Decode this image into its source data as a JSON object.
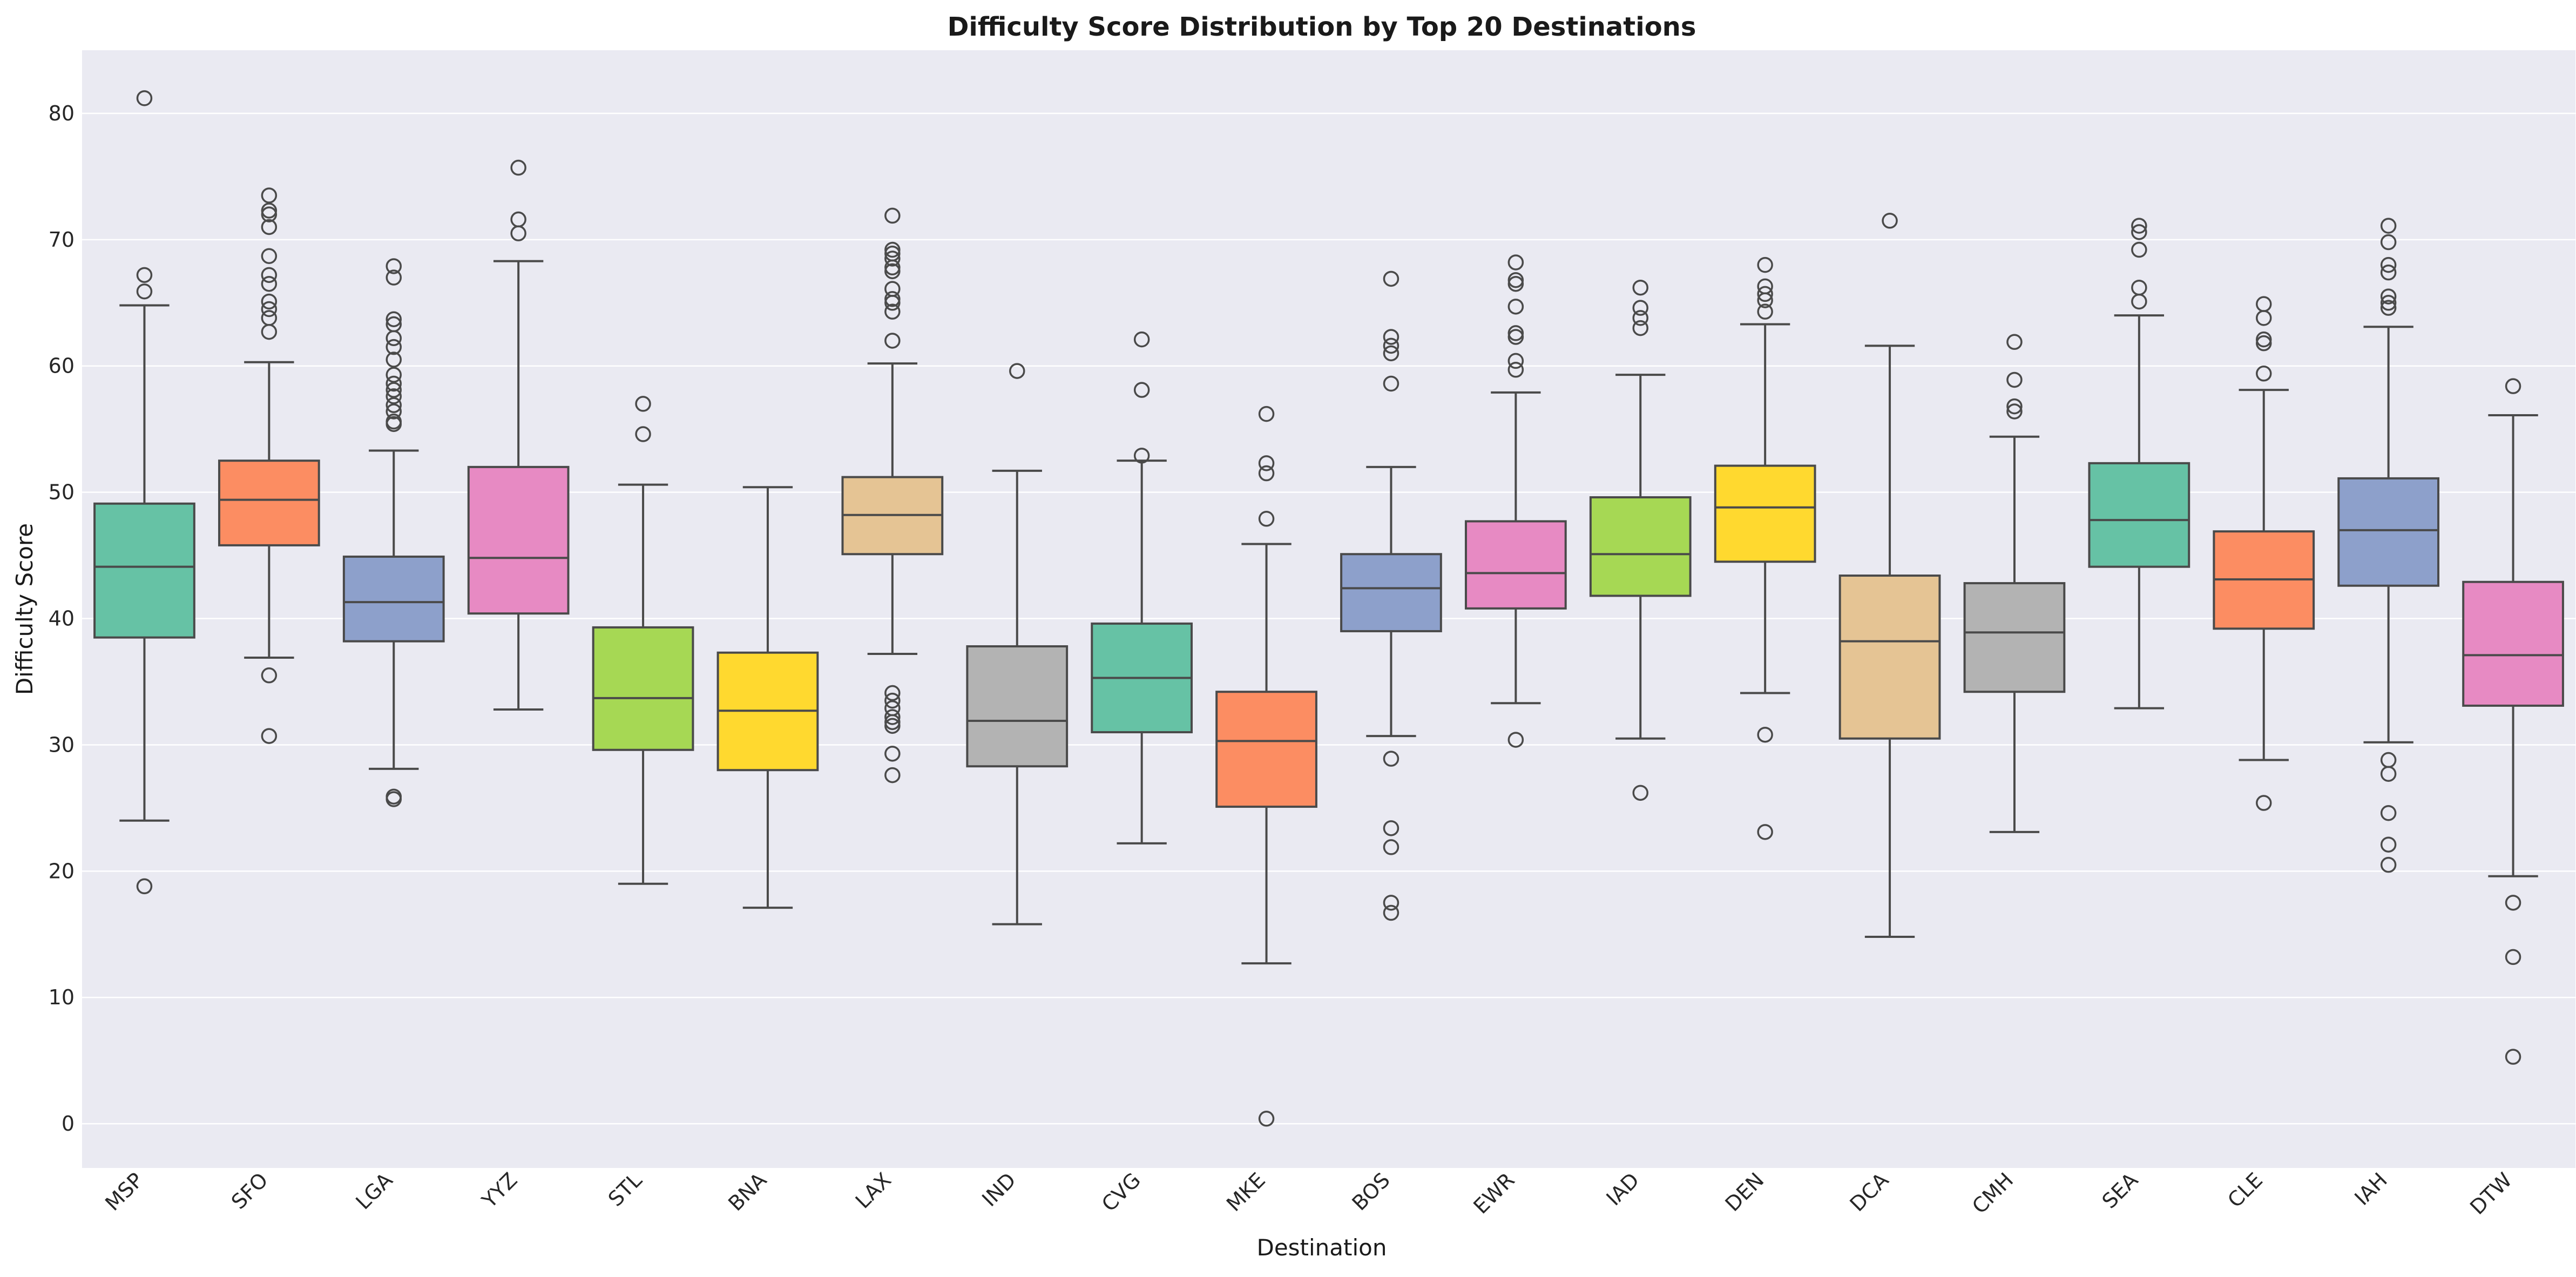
{
  "chart_data": {
    "type": "box",
    "title": "Difficulty Score Distribution by Top 20 Destinations",
    "xlabel": "Destination",
    "ylabel": "Difficulty Score",
    "ylim": [
      -3.5,
      85
    ],
    "yticks": [
      0,
      10,
      20,
      30,
      40,
      50,
      60,
      70,
      80
    ],
    "grid": true,
    "legend": "none",
    "categories": [
      "MSP",
      "SFO",
      "LGA",
      "YYZ",
      "STL",
      "BNA",
      "LAX",
      "IND",
      "CVG",
      "MKE",
      "BOS",
      "EWR",
      "IAD",
      "DEN",
      "DCA",
      "CMH",
      "SEA",
      "CLE",
      "IAH",
      "DTW"
    ],
    "boxes": [
      {
        "cat": "MSP",
        "color": "#66c2a5",
        "q1": 38.5,
        "median": 44.1,
        "q3": 49.1,
        "whisker_low": 24.0,
        "whisker_high": 64.8,
        "fliers": [
          81.2,
          67.2,
          65.9,
          18.8
        ]
      },
      {
        "cat": "SFO",
        "color": "#fc8d62",
        "q1": 45.8,
        "median": 49.4,
        "q3": 52.5,
        "whisker_low": 36.9,
        "whisker_high": 60.3,
        "fliers": [
          73.5,
          72.3,
          72.0,
          71.0,
          68.7,
          67.2,
          66.5,
          65.1,
          64.5,
          63.8,
          62.7,
          35.5,
          30.7
        ]
      },
      {
        "cat": "LGA",
        "color": "#8da0cb",
        "q1": 38.2,
        "median": 41.3,
        "q3": 44.9,
        "whisker_low": 28.1,
        "whisker_high": 53.3,
        "fliers": [
          67.9,
          67.0,
          63.7,
          63.3,
          62.2,
          61.5,
          60.5,
          59.3,
          58.6,
          58.1,
          57.6,
          56.9,
          56.4,
          55.6,
          55.4,
          25.9,
          25.7
        ]
      },
      {
        "cat": "YYZ",
        "color": "#e78ac3",
        "q1": 40.4,
        "median": 44.8,
        "q3": 52.0,
        "whisker_low": 32.8,
        "whisker_high": 68.3,
        "fliers": [
          75.7,
          71.6,
          70.5
        ]
      },
      {
        "cat": "STL",
        "color": "#a6d854",
        "q1": 29.6,
        "median": 33.7,
        "q3": 39.3,
        "whisker_low": 19.0,
        "whisker_high": 50.6,
        "fliers": [
          57.0,
          54.6
        ]
      },
      {
        "cat": "BNA",
        "color": "#ffd92f",
        "q1": 28.0,
        "median": 32.7,
        "q3": 37.3,
        "whisker_low": 17.1,
        "whisker_high": 50.4,
        "fliers": []
      },
      {
        "cat": "LAX",
        "color": "#e5c494",
        "q1": 45.1,
        "median": 48.2,
        "q3": 51.2,
        "whisker_low": 37.2,
        "whisker_high": 60.2,
        "fliers": [
          71.9,
          69.2,
          68.9,
          68.5,
          67.8,
          67.5,
          66.1,
          65.3,
          65.0,
          64.3,
          62.0,
          34.1,
          33.5,
          32.9,
          32.2,
          31.8,
          31.5,
          29.3,
          27.6
        ]
      },
      {
        "cat": "IND",
        "color": "#b3b3b3",
        "q1": 28.3,
        "median": 31.9,
        "q3": 37.8,
        "whisker_low": 15.8,
        "whisker_high": 51.7,
        "fliers": [
          59.6
        ]
      },
      {
        "cat": "CVG",
        "color": "#66c2a5",
        "q1": 31.0,
        "median": 35.3,
        "q3": 39.6,
        "whisker_low": 22.2,
        "whisker_high": 52.5,
        "fliers": [
          62.1,
          58.1,
          52.9
        ]
      },
      {
        "cat": "MKE",
        "color": "#fc8d62",
        "q1": 25.1,
        "median": 30.3,
        "q3": 34.2,
        "whisker_low": 12.7,
        "whisker_high": 45.9,
        "fliers": [
          56.2,
          52.3,
          51.5,
          47.9,
          0.4
        ]
      },
      {
        "cat": "BOS",
        "color": "#8da0cb",
        "q1": 39.0,
        "median": 42.4,
        "q3": 45.1,
        "whisker_low": 30.7,
        "whisker_high": 52.0,
        "fliers": [
          66.9,
          62.3,
          61.6,
          61.0,
          58.6,
          28.9,
          23.4,
          21.9,
          17.5,
          16.7
        ]
      },
      {
        "cat": "EWR",
        "color": "#e78ac3",
        "q1": 40.8,
        "median": 43.6,
        "q3": 47.7,
        "whisker_low": 33.3,
        "whisker_high": 57.9,
        "fliers": [
          68.2,
          66.8,
          66.5,
          64.7,
          62.6,
          62.3,
          60.4,
          59.7,
          30.4
        ]
      },
      {
        "cat": "IAD",
        "color": "#a6d854",
        "q1": 41.8,
        "median": 45.1,
        "q3": 49.6,
        "whisker_low": 30.5,
        "whisker_high": 59.3,
        "fliers": [
          66.2,
          64.6,
          63.8,
          63.0,
          26.2
        ]
      },
      {
        "cat": "DEN",
        "color": "#ffd92f",
        "q1": 44.5,
        "median": 48.8,
        "q3": 52.1,
        "whisker_low": 34.1,
        "whisker_high": 63.3,
        "fliers": [
          68.0,
          66.3,
          65.7,
          65.2,
          64.3,
          30.8,
          23.1
        ]
      },
      {
        "cat": "DCA",
        "color": "#e5c494",
        "q1": 30.5,
        "median": 38.2,
        "q3": 43.4,
        "whisker_low": 14.8,
        "whisker_high": 61.6,
        "fliers": [
          71.5
        ]
      },
      {
        "cat": "CMH",
        "color": "#b3b3b3",
        "q1": 34.2,
        "median": 38.9,
        "q3": 42.8,
        "whisker_low": 23.1,
        "whisker_high": 54.4,
        "fliers": [
          61.9,
          58.9,
          56.8,
          56.4
        ]
      },
      {
        "cat": "SEA",
        "color": "#66c2a5",
        "q1": 44.1,
        "median": 47.8,
        "q3": 52.3,
        "whisker_low": 32.9,
        "whisker_high": 64.0,
        "fliers": [
          71.1,
          70.6,
          69.2,
          66.2,
          65.1
        ]
      },
      {
        "cat": "CLE",
        "color": "#fc8d62",
        "q1": 39.2,
        "median": 43.1,
        "q3": 46.9,
        "whisker_low": 28.8,
        "whisker_high": 58.1,
        "fliers": [
          64.9,
          63.8,
          62.1,
          61.8,
          59.4,
          25.4
        ]
      },
      {
        "cat": "IAH",
        "color": "#8da0cb",
        "q1": 42.6,
        "median": 47.0,
        "q3": 51.1,
        "whisker_low": 30.2,
        "whisker_high": 63.1,
        "fliers": [
          71.1,
          69.8,
          68.0,
          67.4,
          65.5,
          65.0,
          64.6,
          28.8,
          27.7,
          24.6,
          22.1,
          20.5
        ]
      },
      {
        "cat": "DTW",
        "color": "#e78ac3",
        "q1": 33.1,
        "median": 37.1,
        "q3": 42.9,
        "whisker_low": 19.6,
        "whisker_high": 56.1,
        "fliers": [
          58.4,
          17.5,
          13.2,
          5.3
        ]
      }
    ]
  }
}
